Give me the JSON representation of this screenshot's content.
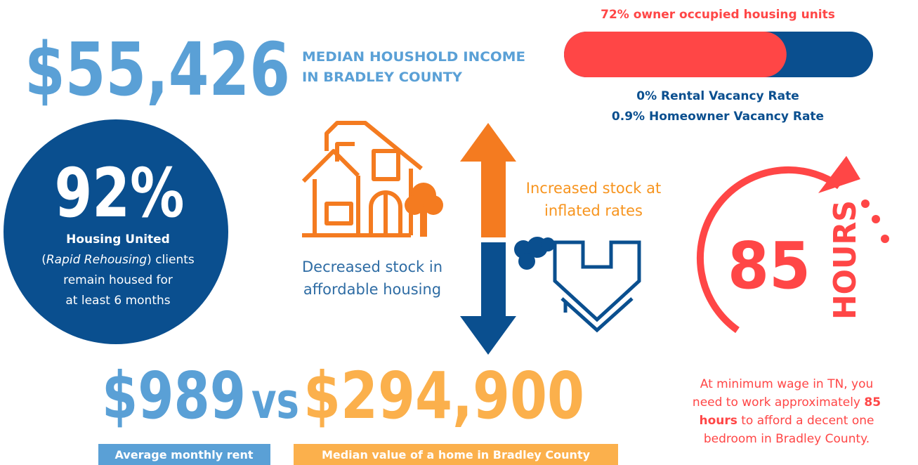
{
  "income": {
    "amount": "$55,426",
    "label_lines": [
      "MEDIAN HOUSHOLD INCOME",
      "IN BRADLEY COUNTY"
    ]
  },
  "owner_bar": {
    "label": "72% owner occupied housing units",
    "value": 72,
    "max": 100
  },
  "vacancy": [
    "0% Rental Vacancy Rate",
    "0.9% Homeowner Vacancy Rate"
  ],
  "rehousing": {
    "percent": "92%",
    "line1": "Housing United",
    "line2": [
      "(",
      "Rapid Rehousing",
      ") clients"
    ],
    "line3": "remain housed for",
    "line4": "at least 6 months"
  },
  "increased": [
    "Increased stock at",
    "inflated rates"
  ],
  "decreased": [
    "Decreased stock in",
    "affordable housing"
  ],
  "hours": {
    "number": "85",
    "unit": "HOURS",
    "note": [
      [
        "At minimum wage in TN, you"
      ],
      [
        "need to work  approximately ",
        "85"
      ],
      [
        "hours",
        " to afford a decent one"
      ],
      [
        "bedroom in Bradley County."
      ]
    ]
  },
  "comparison": {
    "rent": "$989",
    "vs": "vs",
    "home": "$294,900",
    "rent_label": "Average monthly rent",
    "home_label": "Median value of a home in Bradley County"
  }
}
